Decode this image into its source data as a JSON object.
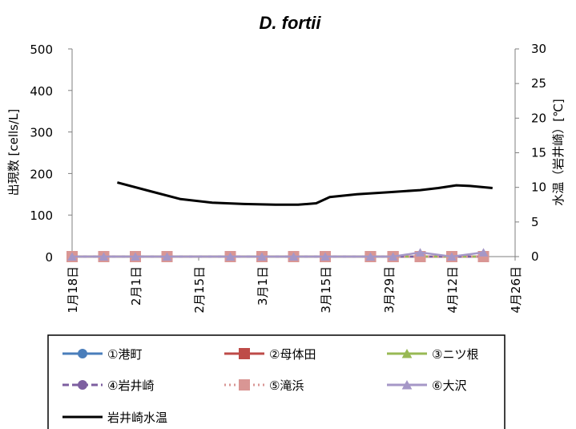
{
  "chart_data": {
    "type": "line",
    "title": "D. fortii",
    "ylabel": "出現数 [cells/L]",
    "y2label": "水温（岩井崎）[℃]",
    "ylim": [
      0,
      500
    ],
    "y2lim": [
      0,
      30
    ],
    "yticks": [
      0,
      100,
      200,
      300,
      400,
      500
    ],
    "y2ticks": [
      0,
      5,
      10,
      15,
      20,
      25,
      30
    ],
    "x_range_days": [
      0,
      98
    ],
    "xticks": [
      {
        "day": 0,
        "label": "1月18日"
      },
      {
        "day": 14,
        "label": "2月1日"
      },
      {
        "day": 28,
        "label": "2月15日"
      },
      {
        "day": 42,
        "label": "3月1日"
      },
      {
        "day": 56,
        "label": "3月15日"
      },
      {
        "day": 70,
        "label": "3月29日"
      },
      {
        "day": 84,
        "label": "4月12日"
      },
      {
        "day": 98,
        "label": "4月26日"
      }
    ],
    "sample_days": [
      0,
      7,
      14,
      21,
      35,
      42,
      49,
      56,
      66,
      71,
      77,
      84,
      91
    ],
    "series": [
      {
        "name": "①港町",
        "color": "#4a7ebb",
        "marker": "circle",
        "dash": "solid",
        "values": [
          0,
          0,
          0,
          0,
          0,
          0,
          0,
          0,
          0,
          0,
          0,
          0,
          0
        ]
      },
      {
        "name": "②母体田",
        "color": "#be4b48",
        "marker": "square",
        "dash": "solid",
        "values": [
          0,
          0,
          0,
          0,
          0,
          0,
          0,
          0,
          0,
          0,
          0,
          0,
          0
        ]
      },
      {
        "name": "③ニツ根",
        "color": "#98b954",
        "marker": "triangle",
        "dash": "solid",
        "values": [
          0,
          0,
          0,
          0,
          0,
          0,
          0,
          0,
          0,
          0,
          0,
          0,
          0
        ]
      },
      {
        "name": "④岩井崎",
        "color": "#7d5fa0",
        "marker": "circle",
        "dash": "dash",
        "values": [
          0,
          0,
          0,
          0,
          0,
          0,
          0,
          0,
          0,
          0,
          0,
          0,
          0
        ]
      },
      {
        "name": "⑤滝浜",
        "color": "#d99694",
        "marker": "square",
        "dash": "dot",
        "values": [
          0,
          0,
          0,
          0,
          0,
          0,
          0,
          0,
          0,
          0,
          0,
          0,
          0
        ]
      },
      {
        "name": "⑥大沢",
        "color": "#a597c7",
        "marker": "triangle",
        "dash": "double",
        "values": [
          0,
          0,
          0,
          0,
          0,
          0,
          0,
          0,
          0,
          0,
          10,
          0,
          10
        ]
      }
    ],
    "temperature_series": {
      "name": "岩井崎水温",
      "color": "#000000",
      "axis": "right",
      "points": [
        {
          "day": 10,
          "value": 10.7
        },
        {
          "day": 17,
          "value": 9.5
        },
        {
          "day": 24,
          "value": 8.3
        },
        {
          "day": 31,
          "value": 7.8
        },
        {
          "day": 38,
          "value": 7.6
        },
        {
          "day": 45,
          "value": 7.5
        },
        {
          "day": 50,
          "value": 7.5
        },
        {
          "day": 54,
          "value": 7.7
        },
        {
          "day": 57,
          "value": 8.6
        },
        {
          "day": 63,
          "value": 9.0
        },
        {
          "day": 70,
          "value": 9.3
        },
        {
          "day": 77,
          "value": 9.6
        },
        {
          "day": 81,
          "value": 9.9
        },
        {
          "day": 85,
          "value": 10.3
        },
        {
          "day": 88,
          "value": 10.2
        },
        {
          "day": 93,
          "value": 9.9
        }
      ]
    },
    "legend_position": "bottom"
  }
}
